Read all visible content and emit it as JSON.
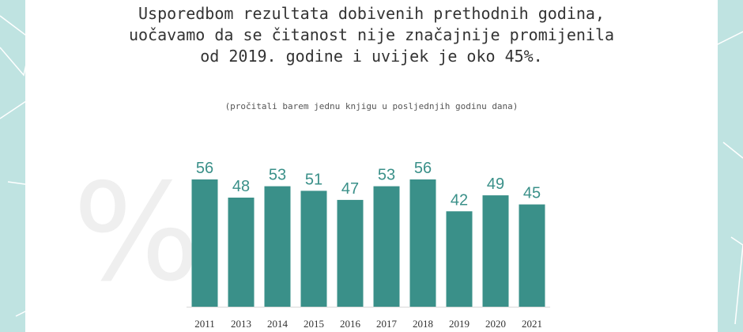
{
  "headline": {
    "line1": "Usporedbom rezultata dobivenih prethodnih godina,",
    "line2": "uočavamo da se čitanost nije značajnije promijenila",
    "line3": "od 2019. godine i uvijek je oko 45%."
  },
  "subtitle": "(pročitali barem jednu knjigu u posljednjih godinu dana)",
  "watermark": "%",
  "colors": {
    "bar": "#3a9089",
    "label": "#3a9089",
    "side": "#bfe3e1",
    "axis": "#d9d9d9"
  },
  "chart_data": {
    "type": "bar",
    "categories": [
      "2011",
      "2013",
      "2014",
      "2015",
      "2016",
      "2017",
      "2018",
      "2019",
      "2020",
      "2021"
    ],
    "values": [
      56,
      48,
      53,
      51,
      47,
      53,
      56,
      42,
      49,
      45
    ],
    "ylim": [
      0,
      56
    ],
    "grid": false,
    "legend": "none",
    "data_labels": true
  }
}
